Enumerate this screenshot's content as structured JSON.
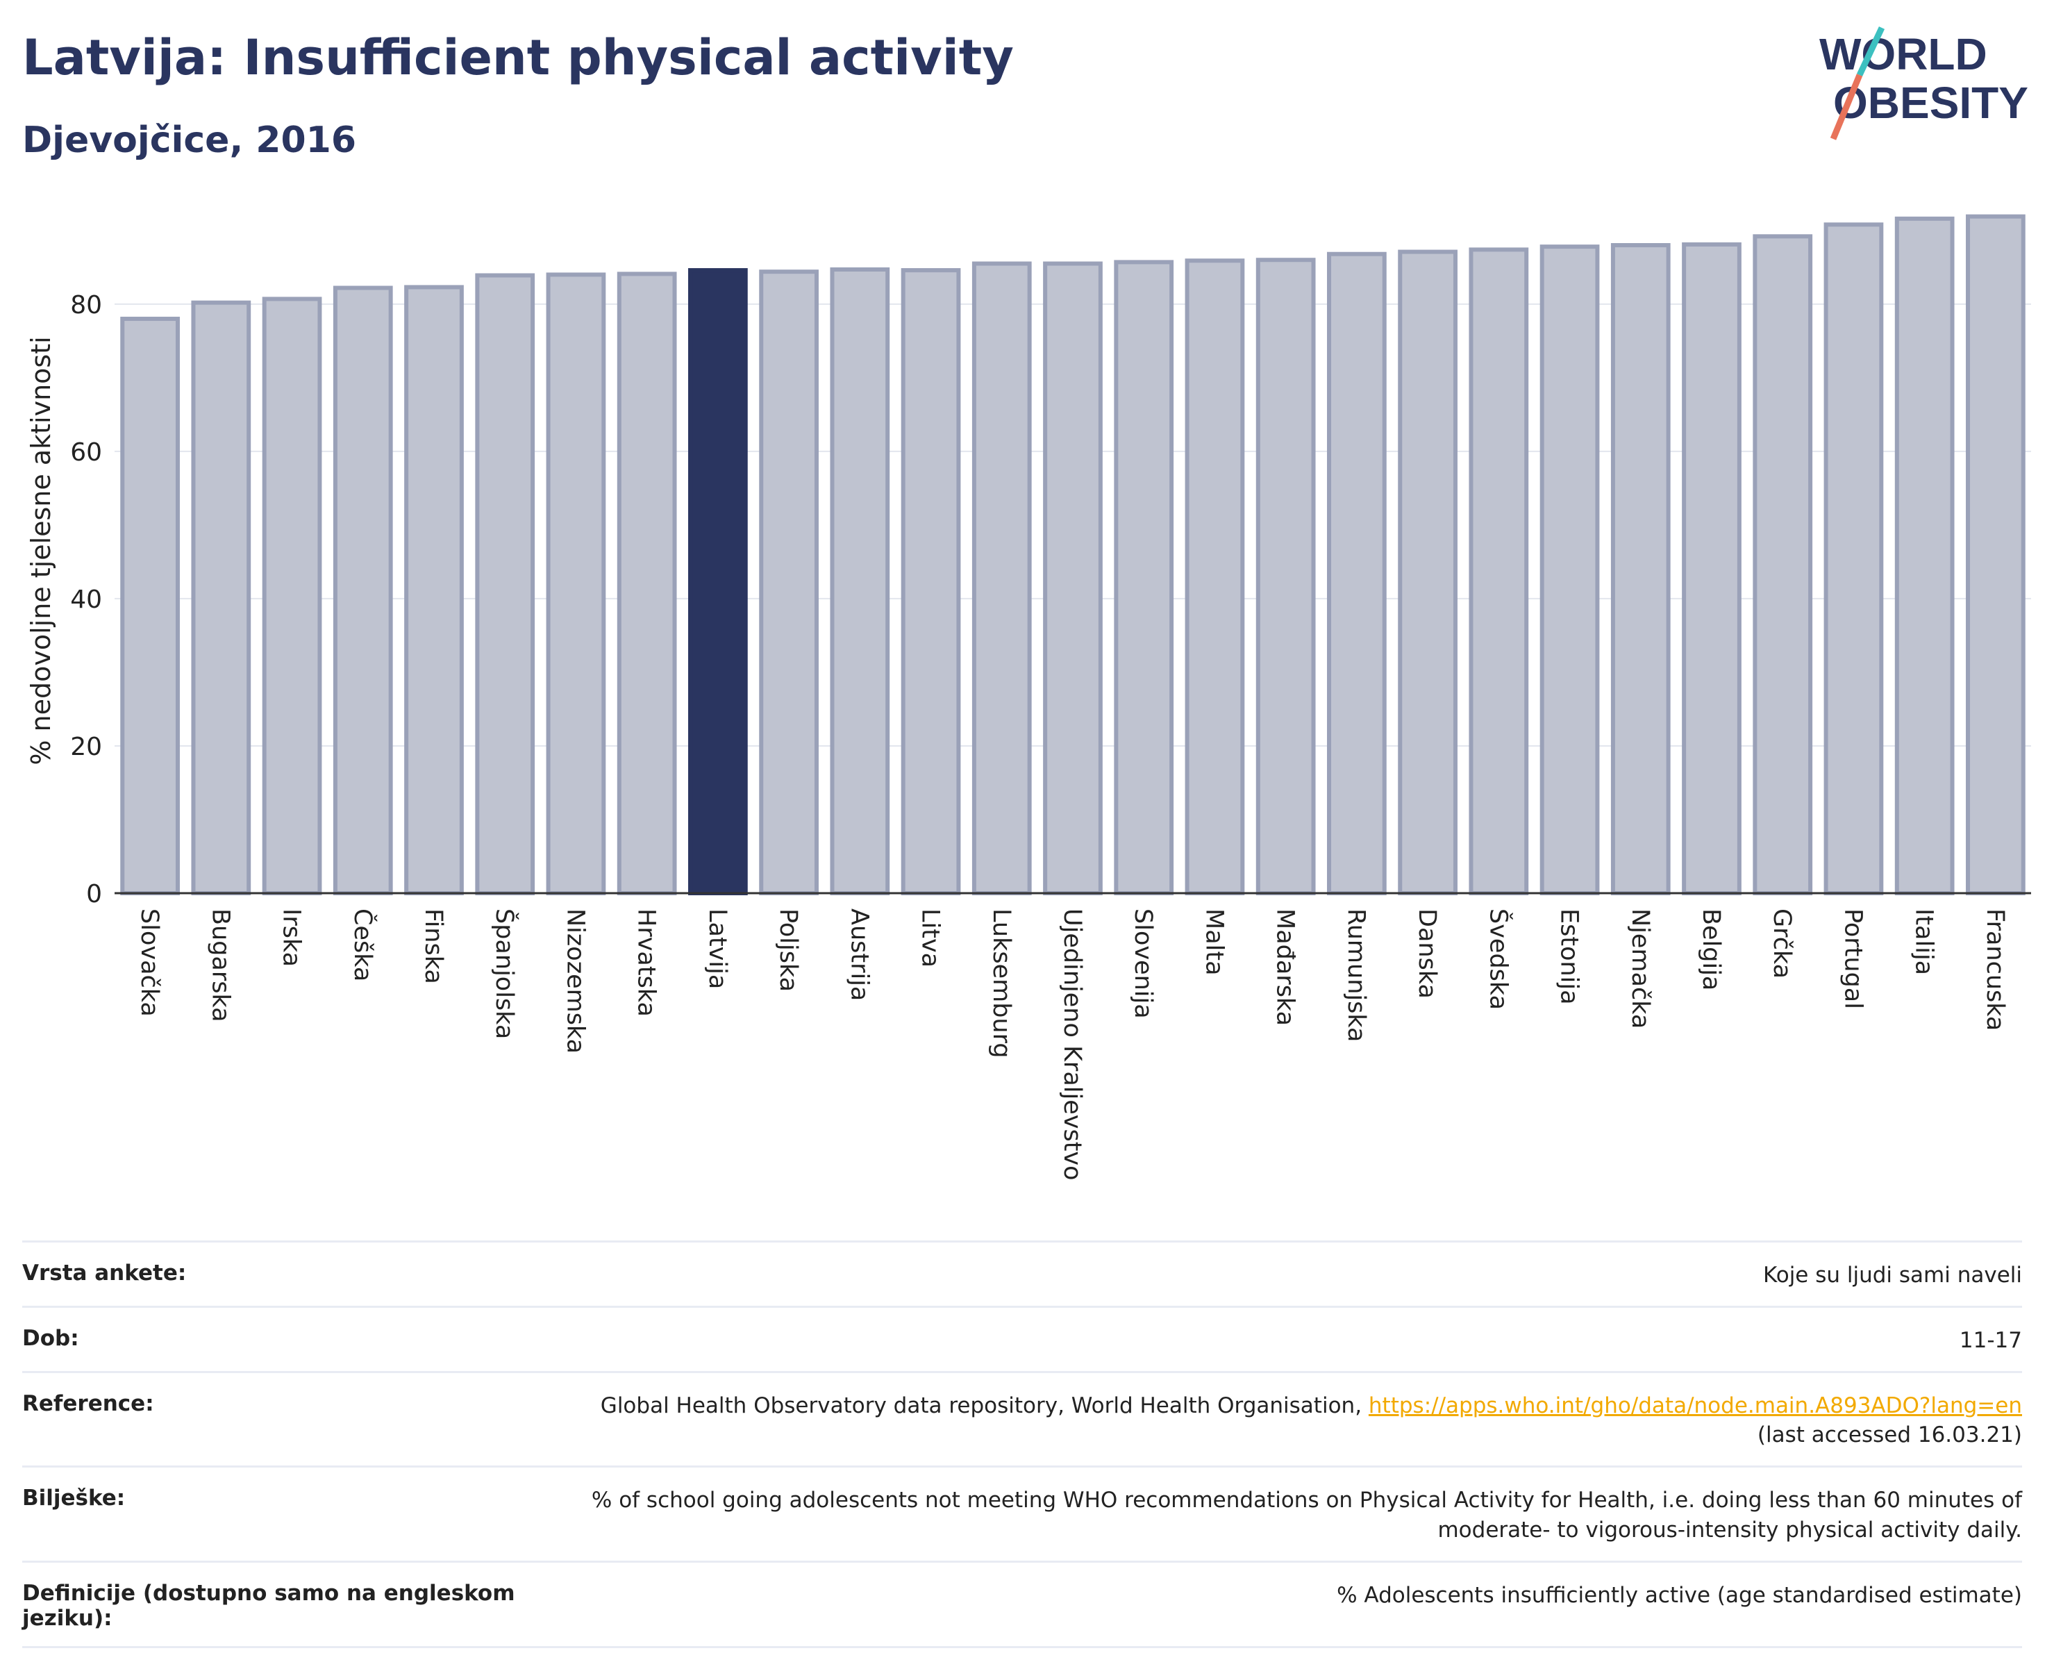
{
  "header": {
    "title": "Latvija: Insufficient physical activity",
    "subtitle": "Djevojčice, 2016"
  },
  "logo": {
    "line1": "WORLD",
    "line2": "OBESITY"
  },
  "colors": {
    "highlight": "#2a3560",
    "bar": "#bfc3d0",
    "bar_stroke": "#9aa1b8",
    "text": "#2a3560"
  },
  "chart_data": {
    "type": "bar",
    "ylabel": "% nedovoljne tjelesne aktivnosti",
    "ylim": [
      0,
      93
    ],
    "yticks": [
      0,
      20,
      40,
      60,
      80
    ],
    "grid": true,
    "highlight": "Latvija",
    "categories": [
      "Slovačka",
      "Bugarska",
      "Irska",
      "Češka",
      "Finska",
      "Španjolska",
      "Nizozemska",
      "Hrvatska",
      "Latvija",
      "Poljska",
      "Austrija",
      "Litva",
      "Luksemburg",
      "Ujedinjeno Kraljevstvo",
      "Slovenija",
      "Malta",
      "Mađarska",
      "Rumunjska",
      "Danska",
      "Švedska",
      "Estonija",
      "Njemačka",
      "Belgija",
      "Grčka",
      "Portugal",
      "Italija",
      "Francuska"
    ],
    "values": [
      78,
      80.2,
      80.7,
      82.2,
      82.3,
      83.9,
      84.0,
      84.1,
      84.6,
      84.4,
      84.7,
      84.6,
      85.5,
      85.5,
      85.7,
      85.9,
      86.0,
      86.8,
      87.1,
      87.4,
      87.8,
      88.0,
      88.1,
      89.2,
      90.8,
      91.6,
      91.9
    ]
  },
  "meta": [
    {
      "label": "Vrsta ankete:",
      "value": "Koje su ljudi sami naveli"
    },
    {
      "label": "Dob:",
      "value": "11-17"
    },
    {
      "label": "Reference:",
      "value": "Global Health Observatory data repository, World Health Organisation,",
      "link": "https://apps.who.int/gho/data/node.main.A893ADO?lang=en",
      "suffix": "(last accessed 16.03.21)"
    },
    {
      "label": "Bilješke:",
      "value": "% of school going adolescents not meeting WHO recommendations on Physical Activity for Health, i.e. doing less than 60 minutes of moderate- to vigorous-intensity physical activity daily."
    },
    {
      "label": "Definicije (dostupno samo na engleskom jeziku):",
      "value": "% Adolescents insufficiently active (age standardised estimate)"
    }
  ]
}
